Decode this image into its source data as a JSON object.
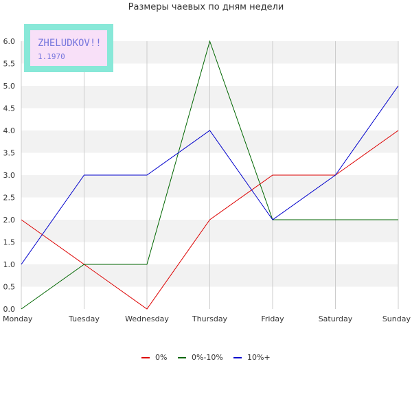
{
  "chart_data": {
    "type": "line",
    "title": "Размеры чаевых по дням недели",
    "xlabel": "",
    "ylabel": "",
    "categories": [
      "Monday",
      "Tuesday",
      "Wednesday",
      "Thursday",
      "Friday",
      "Saturday",
      "Sunday"
    ],
    "ylim": [
      0,
      6
    ],
    "yticks": [
      "0.0",
      "0.5",
      "1.0",
      "1.5",
      "2.0",
      "2.5",
      "3.0",
      "3.5",
      "4.0",
      "4.5",
      "5.0",
      "5.5",
      "6.0"
    ],
    "grid": true,
    "legend_position": "bottom-center",
    "series": [
      {
        "name": "0%",
        "color": "#dd0000",
        "values": [
          2,
          1,
          0,
          2,
          3,
          3,
          4
        ]
      },
      {
        "name": "0%-10%",
        "color": "#006600",
        "values": [
          0,
          1,
          1,
          6,
          2,
          2,
          2
        ]
      },
      {
        "name": "10%+",
        "color": "#0000cc",
        "values": [
          1,
          3,
          3,
          4,
          2,
          3,
          5
        ]
      }
    ],
    "annotation": {
      "title": "ZHELUDKOV!!",
      "subtitle": "1.1970",
      "frame_color": "#88e8d8",
      "fill_color": "#f8e0f8",
      "text_color": "#7777dd"
    },
    "band_color": "#f2f2f2",
    "grid_color": "#cccccc"
  }
}
